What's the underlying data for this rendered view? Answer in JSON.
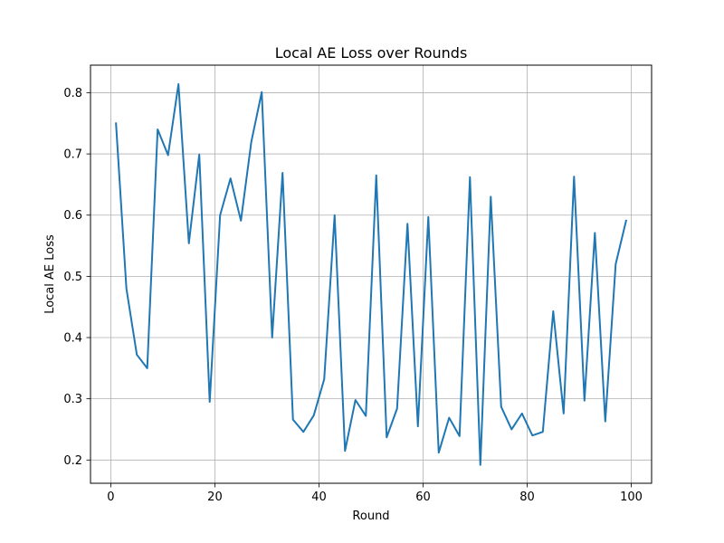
{
  "chart_data": {
    "type": "line",
    "title": "Local AE Loss over Rounds",
    "xlabel": "Round",
    "ylabel": "Local AE Loss",
    "xlim": [
      -3.9,
      103.9
    ],
    "ylim": [
      0.162,
      0.845
    ],
    "xticks": [
      0,
      20,
      40,
      60,
      80,
      100
    ],
    "xtick_labels": [
      "0",
      "20",
      "40",
      "60",
      "80",
      "100"
    ],
    "yticks": [
      0.2,
      0.3,
      0.4,
      0.5,
      0.6,
      0.7,
      0.8
    ],
    "ytick_labels": [
      "0.2",
      "0.3",
      "0.4",
      "0.5",
      "0.6",
      "0.7",
      "0.8"
    ],
    "grid": true,
    "series": [
      {
        "color": "#1f77b4",
        "x": [
          1,
          3,
          5,
          7,
          9,
          11,
          13,
          15,
          17,
          19,
          21,
          23,
          25,
          27,
          29,
          31,
          33,
          35,
          37,
          39,
          41,
          43,
          45,
          47,
          49,
          51,
          53,
          55,
          57,
          59,
          61,
          63,
          65,
          67,
          69,
          71,
          73,
          75,
          77,
          79,
          81,
          83,
          85,
          87,
          89,
          91,
          93,
          95,
          97,
          99
        ],
        "y": [
          0.75,
          0.48,
          0.372,
          0.35,
          0.74,
          0.698,
          0.814,
          0.554,
          0.699,
          0.295,
          0.6,
          0.66,
          0.591,
          0.72,
          0.801,
          0.4,
          0.669,
          0.266,
          0.246,
          0.273,
          0.332,
          0.6,
          0.215,
          0.298,
          0.272,
          0.665,
          0.237,
          0.284,
          0.586,
          0.255,
          0.597,
          0.212,
          0.269,
          0.239,
          0.662,
          0.192,
          0.63,
          0.287,
          0.25,
          0.276,
          0.24,
          0.246,
          0.443,
          0.276,
          0.663,
          0.297,
          0.571,
          0.263,
          0.52,
          0.591
        ]
      }
    ]
  }
}
